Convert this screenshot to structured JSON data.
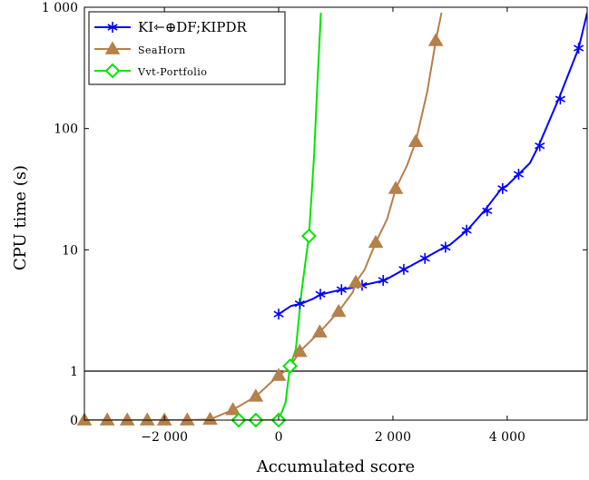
{
  "chart_data": {
    "type": "line",
    "xlabel": "Accumulated score",
    "ylabel": "CPU time (s)",
    "xlim": [
      -3400,
      5400
    ],
    "y_scale": "log with zero baseline",
    "yticks": [
      {
        "value": 0,
        "label": "0"
      },
      {
        "value": 1,
        "label": "1"
      },
      {
        "value": 10,
        "label": "10"
      },
      {
        "value": 100,
        "label": "100"
      },
      {
        "value": 1000,
        "label": "1 000"
      }
    ],
    "xticks": [
      {
        "value": -2000,
        "label": "−2 000"
      },
      {
        "value": 0,
        "label": "0"
      },
      {
        "value": 2000,
        "label": "2 000"
      },
      {
        "value": 4000,
        "label": "4 000"
      }
    ],
    "reference_line": 1,
    "legend_position": "top-left",
    "series": [
      {
        "name": "KI⇽⊕DF;KIPDR",
        "color": "#0000ff",
        "marker": "asterisk",
        "points": [
          [
            0,
            2.95
          ],
          [
            220,
            3.45
          ],
          [
            400,
            3.6
          ],
          [
            600,
            3.95
          ],
          [
            750,
            4.3
          ],
          [
            1100,
            4.7
          ],
          [
            1400,
            5.0
          ],
          [
            1550,
            5.2
          ],
          [
            1850,
            5.6
          ],
          [
            2200,
            6.9
          ],
          [
            2550,
            8.5
          ],
          [
            2900,
            10.5
          ],
          [
            3000,
            11.0
          ],
          [
            3300,
            14.5
          ],
          [
            3600,
            21
          ],
          [
            3900,
            32
          ],
          [
            4000,
            34
          ],
          [
            4200,
            42
          ],
          [
            4400,
            52
          ],
          [
            4550,
            72
          ],
          [
            4900,
            175
          ],
          [
            5000,
            230
          ],
          [
            5250,
            460
          ],
          [
            5400,
            900
          ]
        ],
        "marker_points": [
          [
            0,
            2.95
          ],
          [
            370,
            3.6
          ],
          [
            730,
            4.3
          ],
          [
            1100,
            4.7
          ],
          [
            1460,
            5.1
          ],
          [
            1830,
            5.6
          ],
          [
            2190,
            6.9
          ],
          [
            2560,
            8.5
          ],
          [
            2920,
            10.5
          ],
          [
            3290,
            14.5
          ],
          [
            3650,
            21
          ],
          [
            3920,
            32
          ],
          [
            4200,
            42
          ],
          [
            4570,
            72
          ],
          [
            4930,
            175
          ],
          [
            5250,
            460
          ]
        ]
      },
      {
        "name": "SeaHorn",
        "color": "#b5804a",
        "marker": "triangle",
        "points": [
          [
            -3400,
            0.2
          ],
          [
            -3000,
            0.22
          ],
          [
            -2650,
            0.25
          ],
          [
            -2300,
            0.27
          ],
          [
            -2000,
            0.3
          ],
          [
            -1600,
            0.34
          ],
          [
            -1200,
            0.4
          ],
          [
            -800,
            0.48
          ],
          [
            -400,
            0.62
          ],
          [
            0,
            0.92
          ],
          [
            180,
            1.05
          ],
          [
            370,
            1.45
          ],
          [
            720,
            2.1
          ],
          [
            1050,
            3.1
          ],
          [
            1300,
            4.5
          ],
          [
            1350,
            5.4
          ],
          [
            1500,
            6.8
          ],
          [
            1700,
            11.5
          ],
          [
            1900,
            18
          ],
          [
            2050,
            32
          ],
          [
            2250,
            50
          ],
          [
            2400,
            78
          ],
          [
            2600,
            200
          ],
          [
            2750,
            530
          ],
          [
            2850,
            900
          ]
        ],
        "marker_points": [
          [
            -3400,
            0.2
          ],
          [
            -3000,
            0.22
          ],
          [
            -2650,
            0.25
          ],
          [
            -2300,
            0.27
          ],
          [
            -2000,
            0.3
          ],
          [
            -1600,
            0.34
          ],
          [
            -1200,
            0.4
          ],
          [
            -800,
            0.48
          ],
          [
            -400,
            0.62
          ],
          [
            0,
            0.92
          ],
          [
            370,
            1.45
          ],
          [
            720,
            2.1
          ],
          [
            1050,
            3.1
          ],
          [
            1350,
            5.4
          ],
          [
            1700,
            11.5
          ],
          [
            2050,
            32
          ],
          [
            2400,
            78
          ],
          [
            2750,
            530
          ]
        ]
      },
      {
        "name": "Vvt-Portfolio",
        "color": "#00e600",
        "marker": "diamond",
        "points": [
          [
            -700,
            0.02
          ],
          [
            -400,
            0.06
          ],
          [
            0,
            0.25
          ],
          [
            120,
            0.55
          ],
          [
            200,
            1.1
          ],
          [
            300,
            1.5
          ],
          [
            400,
            4.5
          ],
          [
            530,
            13
          ],
          [
            620,
            60
          ],
          [
            680,
            250
          ],
          [
            740,
            900
          ]
        ],
        "marker_points": [
          [
            -700,
            0.02
          ],
          [
            -400,
            0.06
          ],
          [
            0,
            0.25
          ],
          [
            200,
            1.1
          ],
          [
            530,
            13
          ]
        ]
      }
    ]
  }
}
